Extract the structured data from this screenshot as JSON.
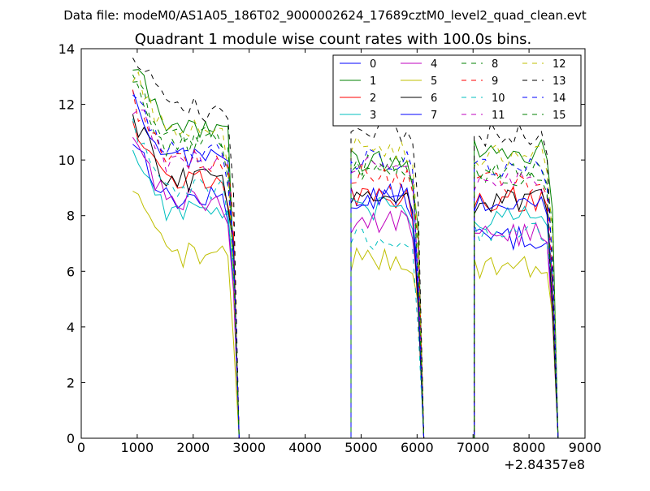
{
  "suptitle": "Data file: modeM0/AS1A05_186T02_9000002624_17689cztM0_level2_quad_clean.evt",
  "chart_data": {
    "type": "line",
    "title": "Quadrant 1 module wise count rates with 100.0s bins.",
    "xlabel": "",
    "ylabel": "",
    "x_offset_label": "+2.84357e8",
    "xlim": [
      0,
      9000
    ],
    "ylim": [
      0,
      14
    ],
    "xticks": [
      0,
      1000,
      2000,
      3000,
      4000,
      5000,
      6000,
      7000,
      8000,
      9000
    ],
    "yticks": [
      0,
      2,
      4,
      6,
      8,
      10,
      12,
      14
    ],
    "legend_location": "top-right",
    "legend_columns": 4,
    "segments": [
      {
        "start": 920,
        "n": 19
      },
      {
        "start": 4820,
        "n": 13
      },
      {
        "start": 7020,
        "n": 15
      }
    ],
    "series": [
      {
        "name": "0",
        "color": "#0000ff",
        "style": "solid",
        "levels": [
          8.6,
          8.7,
          7.2
        ]
      },
      {
        "name": "1",
        "color": "#008000",
        "style": "solid",
        "levels": [
          11.2,
          10.0,
          10.3
        ]
      },
      {
        "name": "2",
        "color": "#ff0000",
        "style": "solid",
        "levels": [
          9.3,
          8.6,
          8.6
        ]
      },
      {
        "name": "3",
        "color": "#00bfbf",
        "style": "solid",
        "levels": [
          8.2,
          8.2,
          7.9
        ]
      },
      {
        "name": "4",
        "color": "#bf00bf",
        "style": "solid",
        "levels": [
          8.6,
          7.8,
          7.3
        ]
      },
      {
        "name": "5",
        "color": "#bfbf00",
        "style": "solid",
        "levels": [
          6.6,
          6.4,
          6.2
        ]
      },
      {
        "name": "6",
        "color": "#000000",
        "style": "solid",
        "levels": [
          9.3,
          8.8,
          8.5
        ]
      },
      {
        "name": "7",
        "color": "#0000ff",
        "style": "solid",
        "levels": [
          10.1,
          8.6,
          8.4
        ]
      },
      {
        "name": "8",
        "color": "#008000",
        "style": "dashed",
        "levels": [
          10.6,
          9.8,
          9.6
        ]
      },
      {
        "name": "9",
        "color": "#ff0000",
        "style": "dashed",
        "levels": [
          10.0,
          9.4,
          9.2
        ]
      },
      {
        "name": "10",
        "color": "#00bfbf",
        "style": "dashed",
        "levels": [
          8.9,
          7.2,
          7.4
        ]
      },
      {
        "name": "11",
        "color": "#bf00bf",
        "style": "dashed",
        "levels": [
          9.9,
          9.7,
          9.3
        ]
      },
      {
        "name": "12",
        "color": "#bfbf00",
        "style": "dashed",
        "levels": [
          11.0,
          10.4,
          10.2
        ]
      },
      {
        "name": "13",
        "color": "#000000",
        "style": "dashed",
        "levels": [
          11.8,
          11.1,
          10.9
        ]
      },
      {
        "name": "14",
        "color": "#0000ff",
        "style": "dashed",
        "levels": [
          10.4,
          10.0,
          9.7
        ]
      },
      {
        "name": "15",
        "color": "#008000",
        "style": "dashed",
        "levels": [
          10.8,
          9.6,
          9.5
        ]
      }
    ]
  }
}
